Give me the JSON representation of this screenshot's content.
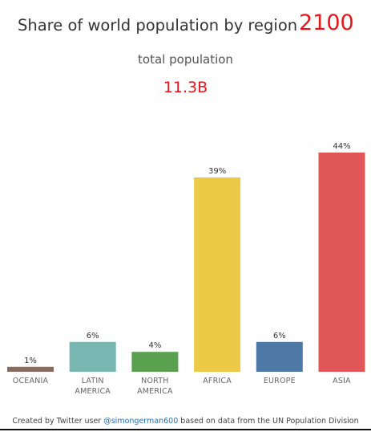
{
  "header": {
    "title": "Share of world population by region",
    "year": "2100",
    "subtitle": "total population",
    "total": "11.3B"
  },
  "footer": {
    "prefix": "Created by Twitter user ",
    "handle": "@simongerman600",
    "suffix": " based on data from the UN Population Division"
  },
  "colors": {
    "accent": "#e8161b",
    "oceania": "#8a6b5e",
    "latin_america": "#79b7b2",
    "north_america": "#59a14f",
    "africa": "#edc948",
    "europe": "#4e79a7",
    "asia": "#e15759"
  },
  "chart_data": {
    "type": "bar",
    "categories": [
      "OCEANIA",
      "LATIN AMERICA",
      "NORTH AMERICA",
      "AFRICA",
      "EUROPE",
      "ASIA"
    ],
    "category_lines": [
      [
        "OCEANIA"
      ],
      [
        "LATIN",
        "AMERICA"
      ],
      [
        "NORTH",
        "AMERICA"
      ],
      [
        "AFRICA"
      ],
      [
        "EUROPE"
      ],
      [
        "ASIA"
      ]
    ],
    "values": [
      1,
      6,
      4,
      39,
      6,
      44
    ],
    "labels": [
      "1%",
      "6%",
      "4%",
      "39%",
      "6%",
      "44%"
    ],
    "colors": [
      "#8a6b5e",
      "#79b7b2",
      "#59a14f",
      "#edc948",
      "#4e79a7",
      "#e15759"
    ],
    "unit": "%",
    "ylim": [
      0,
      44
    ],
    "grid": false,
    "legend": "none"
  }
}
